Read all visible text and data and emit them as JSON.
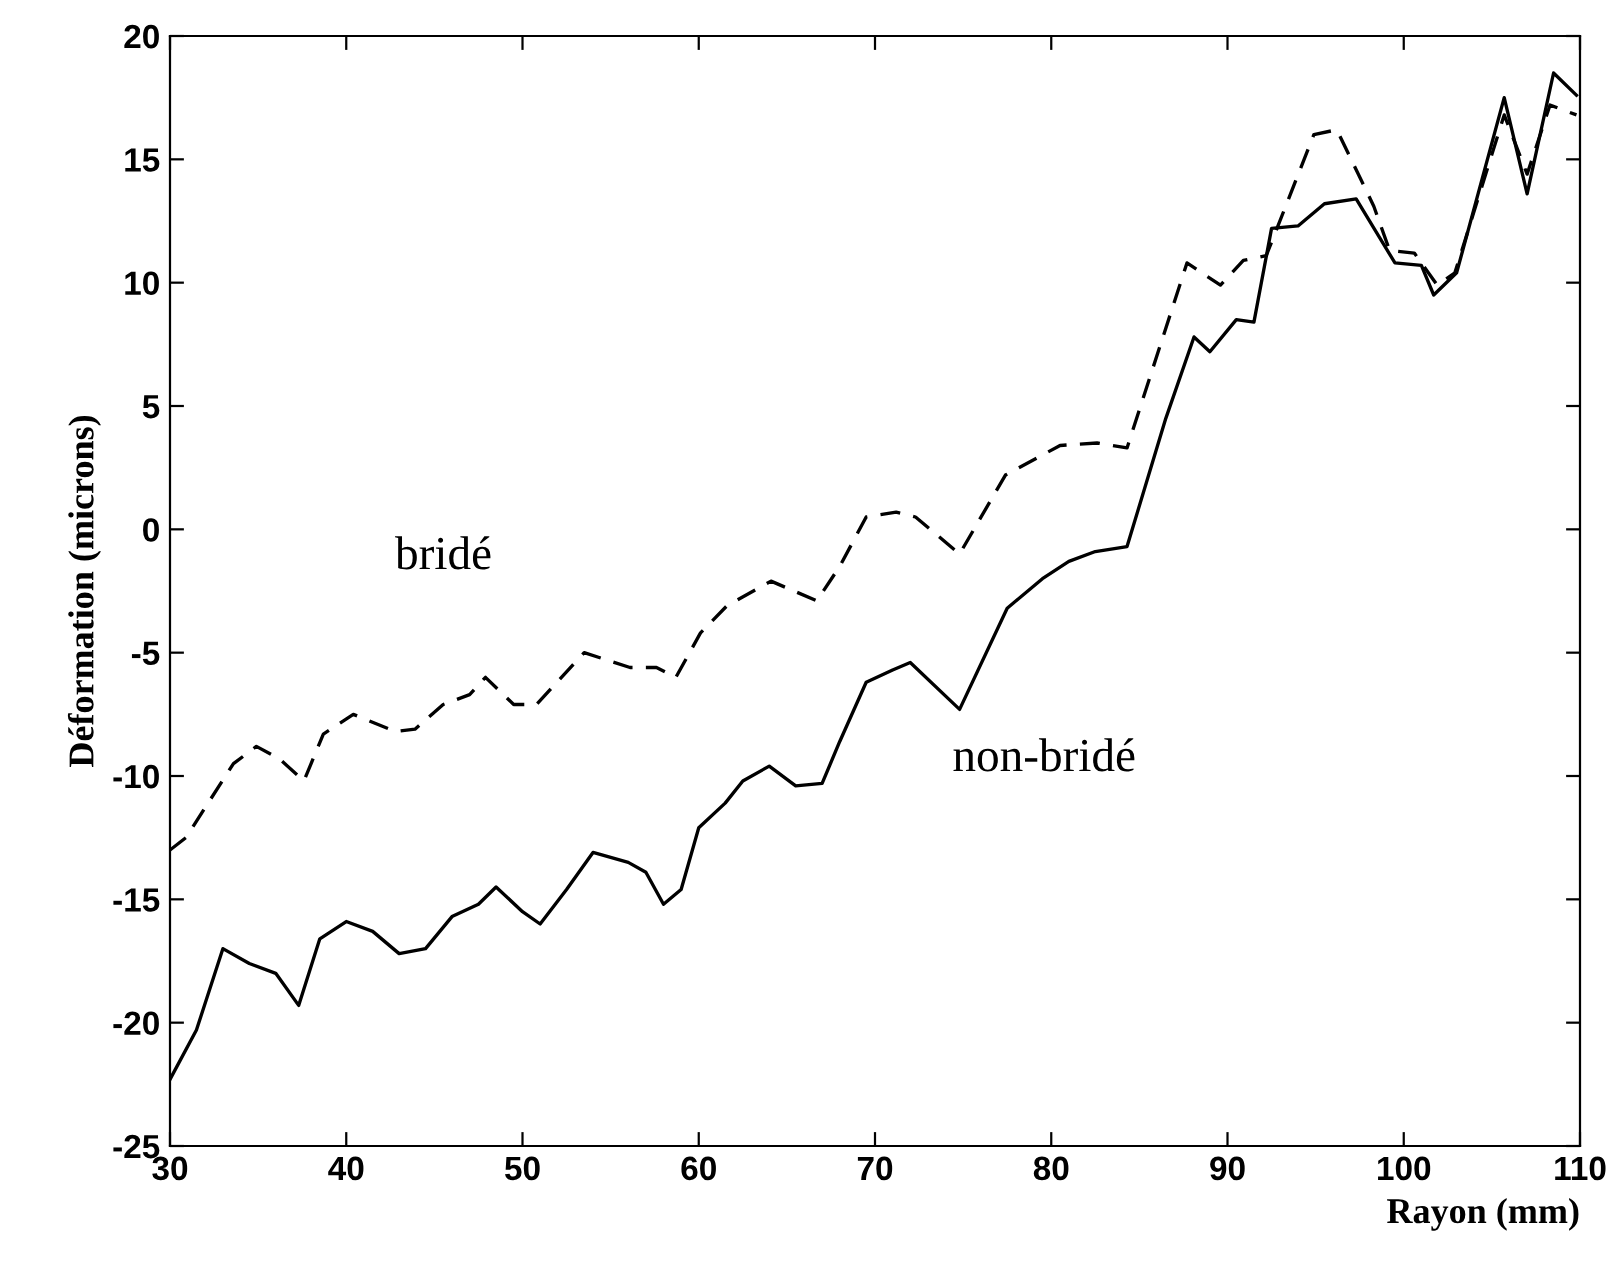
{
  "chart_data": {
    "type": "line",
    "xlabel": "Rayon (mm)",
    "ylabel": "Déformation (microns)",
    "xlim": [
      30,
      110
    ],
    "ylim": [
      -25,
      20
    ],
    "xticks": [
      30,
      40,
      50,
      60,
      70,
      80,
      90,
      100,
      110
    ],
    "yticks": [
      -25,
      -20,
      -15,
      -10,
      -5,
      0,
      5,
      10,
      15,
      20
    ],
    "grid": false,
    "legend": false,
    "marker": "none",
    "series": [
      {
        "name": "bridé",
        "color": "#000000",
        "line_style": "dashed",
        "x": [
          30,
          30.9,
          33.6,
          34.9,
          36.2,
          37.6,
          38.7,
          40.4,
          42.8,
          43.9,
          45.5,
          47,
          47.9,
          49.5,
          50.8,
          53.5,
          56.1,
          57.6,
          58.7,
          60.1,
          61.6,
          64.1,
          66.7,
          68,
          69.5,
          71.2,
          72.3,
          74.8,
          77.4,
          80.5,
          82.6,
          84.3,
          87.7,
          89.6,
          90.9,
          92.2,
          94.9,
          96.2,
          98.3,
          99.2,
          100.6,
          101.9,
          102.9,
          105.7,
          107,
          108.3,
          109.8
        ],
        "values": [
          -13,
          -12.5,
          -9.5,
          -8.8,
          -9.3,
          -10.2,
          -8.3,
          -7.5,
          -8.2,
          -8.1,
          -7.1,
          -6.7,
          -6,
          -7.1,
          -7.1,
          -5,
          -5.6,
          -5.6,
          -6,
          -4.2,
          -3.1,
          -2.1,
          -2.9,
          -1.5,
          0.5,
          0.7,
          0.5,
          -1,
          2.2,
          3.4,
          3.5,
          3.3,
          10.8,
          9.9,
          10.9,
          11.1,
          16,
          16.2,
          13.1,
          11.3,
          11.2,
          9.9,
          10.4,
          16.8,
          14.4,
          17.2,
          16.8
        ]
      },
      {
        "name": "non-bridé",
        "color": "#000000",
        "line_style": "solid",
        "x": [
          30,
          31.5,
          33,
          34.5,
          36,
          37.3,
          38.5,
          40,
          41.5,
          43,
          44.5,
          46,
          47.5,
          48.5,
          50,
          51,
          52.5,
          54,
          56,
          57,
          58,
          59,
          60,
          61.5,
          62.5,
          64,
          65.5,
          67,
          68,
          69.5,
          71,
          72,
          74.8,
          77.5,
          79.5,
          81,
          82.5,
          84.3,
          86.5,
          88.1,
          89,
          90.5,
          91.5,
          92.5,
          94,
          95.5,
          97.3,
          99.5,
          101,
          101.7,
          103,
          105.7,
          107,
          108.5,
          109.8
        ],
        "values": [
          -22.3,
          -20.3,
          -17,
          -17.6,
          -18,
          -19.3,
          -16.6,
          -15.9,
          -16.3,
          -17.2,
          -17,
          -15.7,
          -15.2,
          -14.5,
          -15.5,
          -16,
          -14.6,
          -13.1,
          -13.5,
          -13.9,
          -15.2,
          -14.6,
          -12.1,
          -11.1,
          -10.2,
          -9.6,
          -10.4,
          -10.3,
          -8.6,
          -6.2,
          -5.7,
          -5.4,
          -7.3,
          -3.2,
          -2,
          -1.3,
          -0.9,
          -0.7,
          4.5,
          7.8,
          7.2,
          8.5,
          8.4,
          12.2,
          12.3,
          13.2,
          13.4,
          10.8,
          10.7,
          9.5,
          10.4,
          17.5,
          13.6,
          18.5,
          17.6
        ]
      }
    ]
  }
}
